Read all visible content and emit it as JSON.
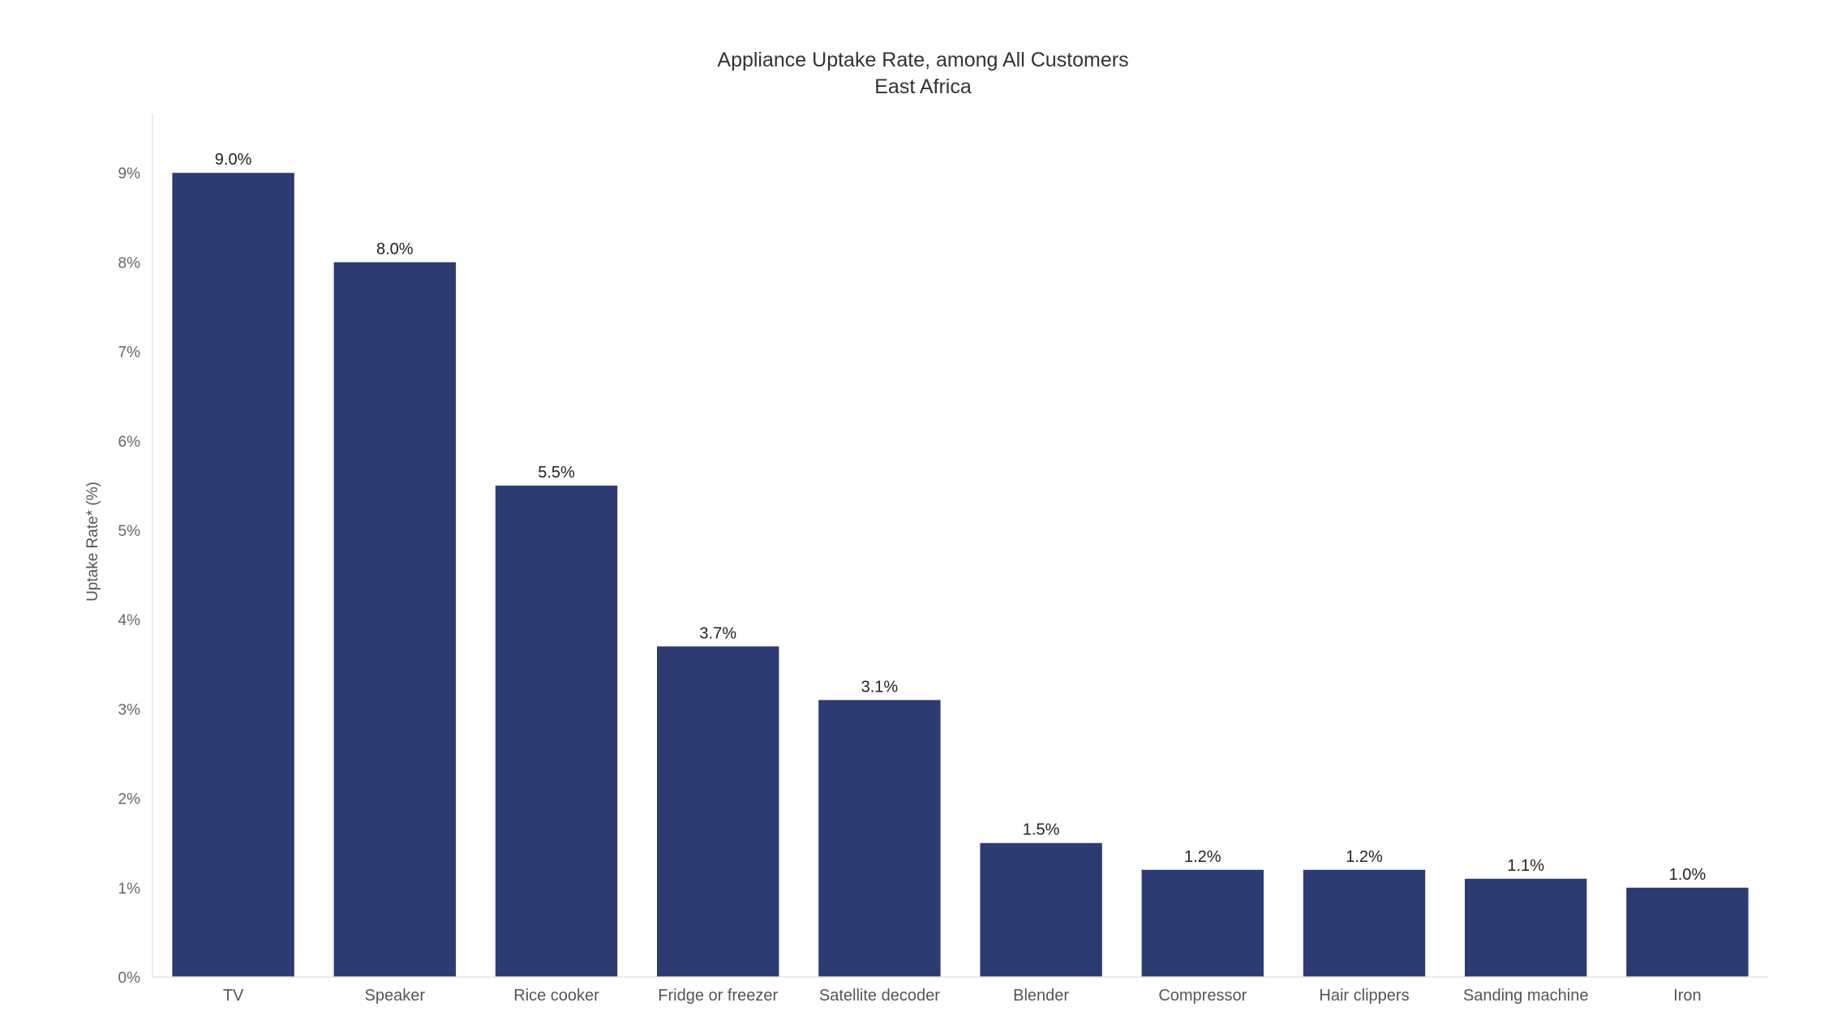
{
  "chart_data": {
    "type": "bar",
    "title": "Appliance Uptake Rate, among All Customers",
    "subtitle": "East Africa",
    "xlabel": "",
    "ylabel": "Uptake Rate* (%)",
    "ylim": [
      0,
      9.5
    ],
    "yticks": [
      "0%",
      "1%",
      "2%",
      "3%",
      "4%",
      "5%",
      "6%",
      "7%",
      "8%",
      "9%"
    ],
    "ytick_values": [
      0,
      1,
      2,
      3,
      4,
      5,
      6,
      7,
      8,
      9
    ],
    "grid": false,
    "bar_color": "#2d3b73",
    "categories": [
      "TV",
      "Speaker",
      "Rice cooker",
      "Fridge or freezer",
      "Satellite decoder",
      "Blender",
      "Compressor",
      "Hair clippers",
      "Sanding machine",
      "Iron"
    ],
    "values": [
      9.0,
      8.0,
      5.5,
      3.7,
      3.1,
      1.5,
      1.2,
      1.2,
      1.1,
      1.0
    ],
    "data_labels": [
      "9.0%",
      "8.0%",
      "5.5%",
      "3.7%",
      "3.1%",
      "1.5%",
      "1.2%",
      "1.2%",
      "1.1%",
      "1.0%"
    ]
  }
}
